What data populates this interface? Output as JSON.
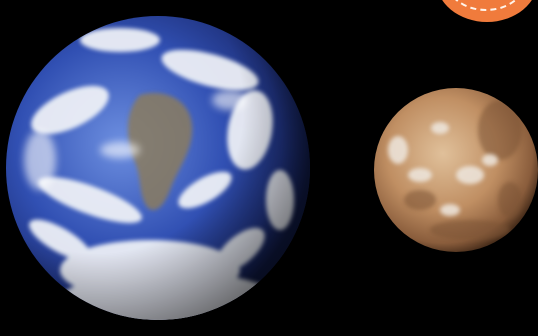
{
  "scene": {
    "background_color": "#000000",
    "objects": [
      {
        "name": "earth",
        "colors": {
          "ocean": "#2a48a8",
          "cloud": "#f2f4f8",
          "land": "#8a7b5e"
        }
      },
      {
        "name": "mars",
        "colors": {
          "surface": "#c79a6e",
          "dark": "#7a5235",
          "frost": "#eee7df"
        }
      }
    ],
    "corner_badge": {
      "color": "#f07b3c",
      "dash_color": "#fff4ea"
    }
  }
}
